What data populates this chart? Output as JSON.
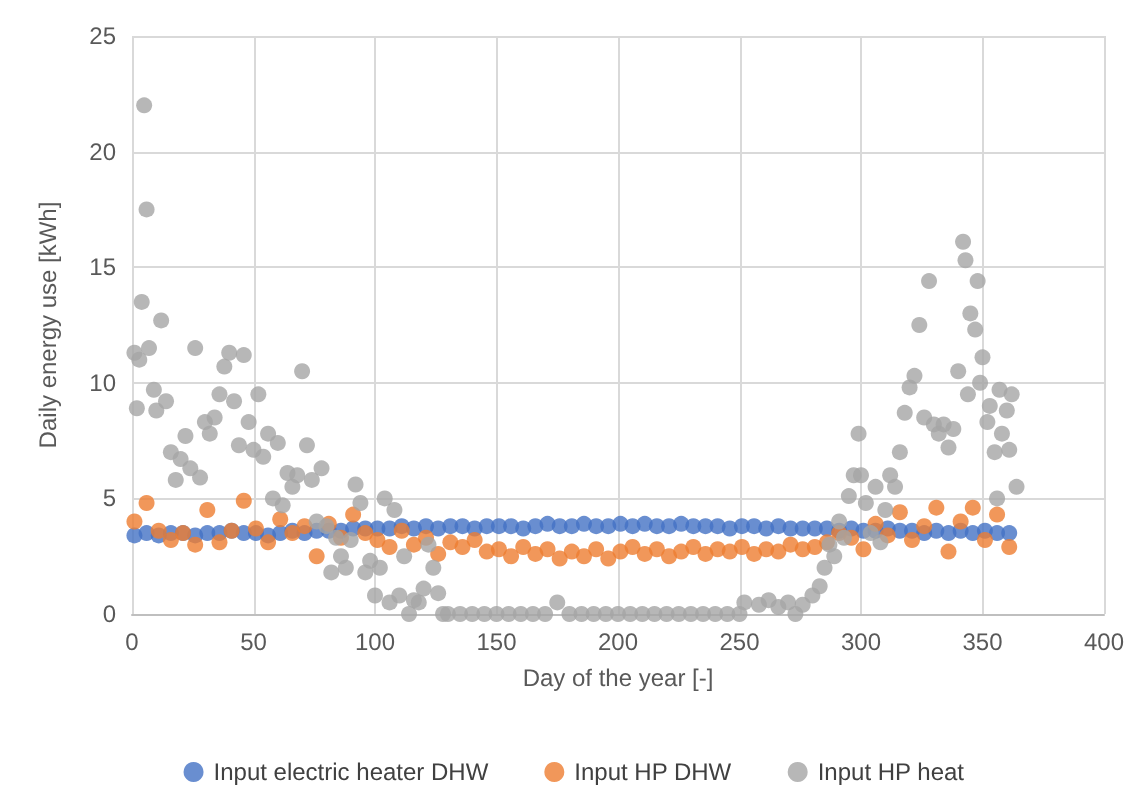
{
  "chart_data": {
    "type": "scatter",
    "xlabel": "Day of the year [-]",
    "ylabel": "Daily energy use [kWh]",
    "xlim": [
      0,
      400
    ],
    "xticks": [
      0,
      50,
      100,
      150,
      200,
      250,
      300,
      350,
      400
    ],
    "ylim": [
      0,
      25
    ],
    "yticks": [
      0,
      5,
      10,
      15,
      20,
      25
    ],
    "grid": true,
    "legend": "bottom",
    "marker": "circle",
    "series": [
      {
        "name": "Input electric heater DHW",
        "color": "#4472c4",
        "x": [
          1,
          6,
          11,
          16,
          21,
          26,
          31,
          36,
          41,
          46,
          51,
          56,
          61,
          66,
          71,
          76,
          81,
          86,
          91,
          96,
          101,
          106,
          111,
          116,
          121,
          126,
          131,
          136,
          141,
          146,
          151,
          156,
          161,
          166,
          171,
          176,
          181,
          186,
          191,
          196,
          201,
          206,
          211,
          216,
          221,
          226,
          231,
          236,
          241,
          246,
          251,
          256,
          261,
          266,
          271,
          276,
          281,
          286,
          291,
          296,
          301,
          306,
          311,
          316,
          321,
          326,
          331,
          336,
          341,
          346,
          351,
          356,
          361
        ],
        "values": [
          3.4,
          3.5,
          3.4,
          3.5,
          3.5,
          3.4,
          3.5,
          3.5,
          3.6,
          3.5,
          3.5,
          3.4,
          3.5,
          3.6,
          3.5,
          3.6,
          3.6,
          3.6,
          3.7,
          3.7,
          3.7,
          3.7,
          3.8,
          3.7,
          3.8,
          3.7,
          3.8,
          3.8,
          3.7,
          3.8,
          3.8,
          3.8,
          3.7,
          3.8,
          3.9,
          3.8,
          3.8,
          3.9,
          3.8,
          3.8,
          3.9,
          3.8,
          3.9,
          3.8,
          3.8,
          3.9,
          3.8,
          3.8,
          3.8,
          3.7,
          3.8,
          3.8,
          3.7,
          3.8,
          3.7,
          3.7,
          3.7,
          3.7,
          3.6,
          3.7,
          3.6,
          3.6,
          3.7,
          3.6,
          3.6,
          3.5,
          3.6,
          3.5,
          3.6,
          3.5,
          3.6,
          3.5,
          3.5
        ]
      },
      {
        "name": "Input HP DHW",
        "color": "#ed7d31",
        "x": [
          1,
          6,
          11,
          16,
          21,
          26,
          31,
          36,
          41,
          46,
          51,
          56,
          61,
          66,
          71,
          76,
          81,
          86,
          91,
          96,
          101,
          106,
          111,
          116,
          121,
          126,
          131,
          136,
          141,
          146,
          151,
          156,
          161,
          166,
          171,
          176,
          181,
          186,
          191,
          196,
          201,
          206,
          211,
          216,
          221,
          226,
          231,
          236,
          241,
          246,
          251,
          256,
          261,
          266,
          271,
          276,
          281,
          286,
          291,
          296,
          301,
          306,
          311,
          316,
          321,
          326,
          331,
          336,
          341,
          346,
          351,
          356,
          361
        ],
        "values": [
          4.0,
          4.8,
          3.6,
          3.2,
          3.5,
          3.0,
          4.5,
          3.1,
          3.6,
          4.9,
          3.7,
          3.1,
          4.1,
          3.5,
          3.8,
          2.5,
          3.9,
          3.3,
          4.3,
          3.5,
          3.2,
          2.9,
          3.6,
          3.0,
          3.3,
          2.6,
          3.1,
          2.9,
          3.2,
          2.7,
          2.8,
          2.5,
          2.9,
          2.6,
          2.8,
          2.4,
          2.7,
          2.5,
          2.8,
          2.4,
          2.7,
          2.9,
          2.6,
          2.8,
          2.5,
          2.7,
          2.9,
          2.6,
          2.8,
          2.7,
          2.9,
          2.6,
          2.8,
          2.7,
          3.0,
          2.8,
          2.9,
          3.1,
          3.5,
          3.3,
          2.8,
          3.9,
          3.4,
          4.4,
          3.2,
          3.8,
          4.6,
          2.7,
          4.0,
          4.6,
          3.2,
          4.3,
          2.9
        ]
      },
      {
        "name": "Input HP heat",
        "color": "#a5a5a5",
        "x": [
          1,
          2,
          3,
          4,
          5,
          6,
          7,
          9,
          10,
          12,
          14,
          16,
          18,
          20,
          22,
          24,
          26,
          28,
          30,
          32,
          34,
          36,
          38,
          40,
          42,
          44,
          46,
          48,
          50,
          52,
          54,
          56,
          58,
          60,
          62,
          64,
          66,
          68,
          70,
          72,
          74,
          76,
          78,
          80,
          82,
          84,
          86,
          88,
          90,
          92,
          94,
          96,
          98,
          100,
          102,
          104,
          106,
          108,
          110,
          112,
          114,
          116,
          118,
          120,
          122,
          124,
          126,
          128,
          130,
          135,
          140,
          145,
          150,
          155,
          160,
          165,
          170,
          175,
          180,
          185,
          190,
          195,
          200,
          205,
          210,
          215,
          220,
          225,
          230,
          235,
          240,
          245,
          250,
          252,
          258,
          262,
          266,
          270,
          273,
          276,
          280,
          283,
          285,
          287,
          289,
          291,
          293,
          295,
          297,
          299,
          300,
          302,
          304,
          306,
          308,
          310,
          312,
          314,
          316,
          318,
          320,
          322,
          324,
          326,
          328,
          330,
          332,
          334,
          336,
          338,
          340,
          342,
          343,
          344,
          345,
          347,
          348,
          349,
          350,
          352,
          353,
          355,
          356,
          357,
          358,
          360,
          361,
          362,
          364
        ],
        "values": [
          11.3,
          8.9,
          11.0,
          13.5,
          22.0,
          17.5,
          11.5,
          9.7,
          8.8,
          12.7,
          9.2,
          7.0,
          5.8,
          6.7,
          7.7,
          6.3,
          11.5,
          5.9,
          8.3,
          7.8,
          8.5,
          9.5,
          10.7,
          11.3,
          9.2,
          7.3,
          11.2,
          8.3,
          7.1,
          9.5,
          6.8,
          7.8,
          5.0,
          7.4,
          4.7,
          6.1,
          5.5,
          6.0,
          10.5,
          7.3,
          5.8,
          4.0,
          6.3,
          3.8,
          1.8,
          3.3,
          2.5,
          2.0,
          3.2,
          5.6,
          4.8,
          1.8,
          2.3,
          0.8,
          2.0,
          5.0,
          0.5,
          4.5,
          0.8,
          2.5,
          0,
          0.6,
          0.5,
          1.1,
          3.0,
          2.0,
          0.9,
          0,
          0,
          0,
          0,
          0,
          0,
          0,
          0,
          0,
          0,
          0.5,
          0,
          0,
          0,
          0,
          0,
          0,
          0,
          0,
          0,
          0,
          0,
          0,
          0,
          0,
          0,
          0.5,
          0.4,
          0.6,
          0.3,
          0.5,
          0,
          0.4,
          0.8,
          1.2,
          2.0,
          3.0,
          2.5,
          4.0,
          3.3,
          5.1,
          6.0,
          7.8,
          6.0,
          4.8,
          3.5,
          5.5,
          3.1,
          4.5,
          6.0,
          5.5,
          7.0,
          8.7,
          9.8,
          10.3,
          12.5,
          8.5,
          14.4,
          8.2,
          7.8,
          8.2,
          7.2,
          8.0,
          10.5,
          16.1,
          15.3,
          9.5,
          13.0,
          12.3,
          14.4,
          10.0,
          11.1,
          8.3,
          9.0,
          7.0,
          5.0,
          9.7,
          7.8,
          8.8,
          7.1,
          9.5,
          5.5
        ]
      }
    ]
  }
}
